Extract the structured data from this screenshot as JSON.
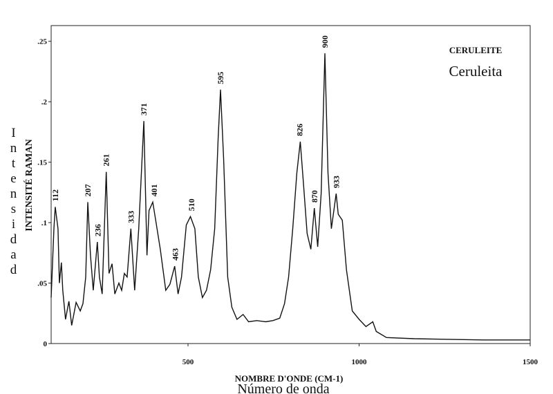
{
  "chart_data": {
    "type": "line",
    "title": "CERULEITE",
    "subtitle": "Ceruleita",
    "y_label": "INTENSITÉ RAMAN",
    "y_label_secondary": "Intensidad",
    "x_label": "NOMBRE D'ONDE (CM-1)",
    "x_label_secondary": "Número de onda",
    "xlim": [
      100,
      1500
    ],
    "ylim": [
      0,
      0.263
    ],
    "xticks": [
      500,
      1000,
      1500
    ],
    "yticks": [
      0,
      {
        "value": 0.05,
        "label": ".05"
      },
      {
        "value": 0.1,
        "label": ".1"
      },
      {
        "value": 0.15,
        "label": ".15"
      },
      {
        "value": 0.2,
        "label": ".2"
      },
      {
        "value": 0.25,
        "label": ".25"
      }
    ],
    "color": "#111111",
    "x": [
      100,
      108,
      112,
      120,
      124,
      130,
      134,
      142,
      152,
      160,
      173,
      185,
      193,
      201,
      207,
      215,
      223,
      235,
      241,
      249,
      261,
      269,
      278,
      286,
      298,
      306,
      314,
      322,
      333,
      344,
      356,
      371,
      380,
      386,
      397,
      406,
      419,
      435,
      447,
      461,
      471,
      481,
      495,
      507,
      520,
      530,
      542,
      554,
      566,
      578,
      588,
      595,
      604,
      616,
      628,
      643,
      661,
      677,
      701,
      727,
      748,
      768,
      782,
      794,
      806,
      818,
      828,
      838,
      848,
      859,
      869,
      879,
      889,
      900,
      909,
      919,
      933,
      939,
      951,
      963,
      980,
      1000,
      1020,
      1040,
      1050,
      1080,
      1161,
      1363,
      1500
    ],
    "values": [
      0.038,
      0.095,
      0.113,
      0.095,
      0.05,
      0.067,
      0.044,
      0.02,
      0.035,
      0.015,
      0.034,
      0.027,
      0.033,
      0.055,
      0.117,
      0.073,
      0.044,
      0.084,
      0.055,
      0.041,
      0.142,
      0.058,
      0.066,
      0.041,
      0.05,
      0.044,
      0.058,
      0.055,
      0.095,
      0.044,
      0.095,
      0.184,
      0.073,
      0.11,
      0.117,
      0.101,
      0.078,
      0.044,
      0.049,
      0.064,
      0.041,
      0.055,
      0.098,
      0.105,
      0.095,
      0.055,
      0.038,
      0.044,
      0.061,
      0.095,
      0.17,
      0.21,
      0.153,
      0.055,
      0.03,
      0.02,
      0.024,
      0.018,
      0.019,
      0.018,
      0.019,
      0.021,
      0.033,
      0.055,
      0.095,
      0.141,
      0.167,
      0.13,
      0.091,
      0.078,
      0.112,
      0.08,
      0.124,
      0.24,
      0.141,
      0.095,
      0.124,
      0.107,
      0.102,
      0.061,
      0.027,
      0.02,
      0.014,
      0.018,
      0.01,
      0.005,
      0.004,
      0.003,
      0.003
    ],
    "peaks": [
      112,
      207,
      236,
      261,
      333,
      371,
      401,
      463,
      510,
      595,
      826,
      870,
      900,
      933
    ]
  }
}
